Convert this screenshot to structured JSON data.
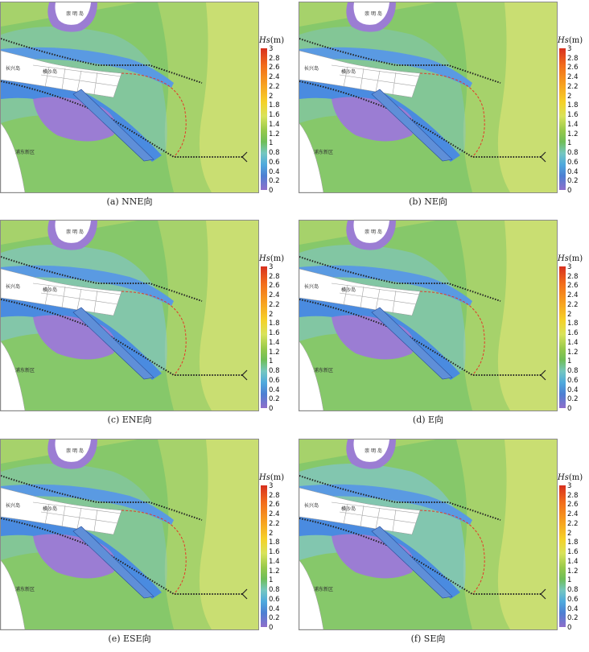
{
  "legend": {
    "title_var": "Hs",
    "title_unit": "(m)",
    "ticks": [
      "3",
      "2.8",
      "2.6",
      "2.4",
      "2.2",
      "2",
      "1.8",
      "1.6",
      "1.4",
      "1.2",
      "1",
      "0.8",
      "0.6",
      "0.4",
      "0.2",
      "0"
    ]
  },
  "places": {
    "chongming": "崇 明 岛",
    "changxing": "长兴岛",
    "hengsha": "横沙岛",
    "pudong": "浦东新区"
  },
  "panels": [
    {
      "caption": "(a) NNE向",
      "wave_level": 1.0
    },
    {
      "caption": "(b) NE向",
      "wave_level": 1.05
    },
    {
      "caption": "(c) ENE向",
      "wave_level": 0.9
    },
    {
      "caption": "(d) E向",
      "wave_level": 0.95
    },
    {
      "caption": "(e) ESE向",
      "wave_level": 1.05
    },
    {
      "caption": "(f) SE向",
      "wave_level": 0.85
    }
  ],
  "colors": {
    "land": "#ffffff",
    "island_purple": "#9b7dd3",
    "deep_blue": "#4a8be0",
    "light_blue": "#7fc4e8",
    "green_low": "#86c86a",
    "green_mid": "#a6d26b",
    "green_high": "#c9de72",
    "dike_dotted": "#222222",
    "boundary_dashed": "#e23a2a"
  }
}
